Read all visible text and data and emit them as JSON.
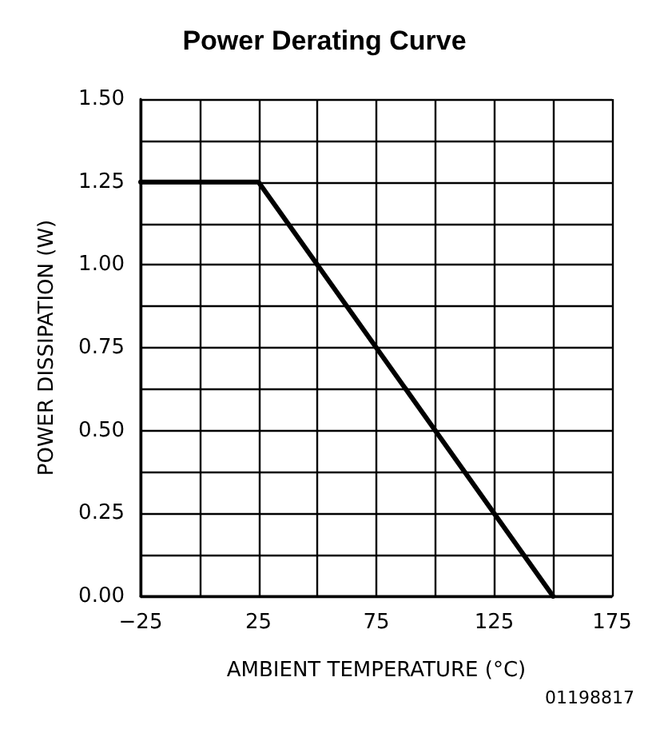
{
  "chart_data": {
    "type": "line",
    "title": "Power Derating Curve",
    "xlabel": "AMBIENT TEMPERATURE (°C)",
    "ylabel": "POWER DISSIPATION (W)",
    "annotations": [
      "01198817"
    ],
    "x": [
      -25,
      25,
      150
    ],
    "series": [
      {
        "color": "#000000",
        "values": [
          1.25,
          1.25,
          0
        ]
      }
    ],
    "xlim": [
      -25,
      175
    ],
    "xticks": [
      {
        "value": -25,
        "label": "−25"
      },
      {
        "value": 0,
        "label": null
      },
      25,
      {
        "value": 50,
        "label": null
      },
      75,
      {
        "value": 100,
        "label": null
      },
      125,
      {
        "value": 150,
        "label": null
      },
      175
    ],
    "ylim": [
      0,
      1.5
    ],
    "yticks": [
      {
        "value": 0,
        "label": "0.00"
      },
      {
        "value": 0.125,
        "label": null
      },
      {
        "value": 0.25,
        "label": "0.25"
      },
      {
        "value": 0.375,
        "label": null
      },
      {
        "value": 0.5,
        "label": "0.50"
      },
      {
        "value": 0.625,
        "label": null
      },
      {
        "value": 0.75,
        "label": "0.75"
      },
      {
        "value": 0.875,
        "label": null
      },
      {
        "value": 1,
        "label": "1.00"
      },
      {
        "value": 1.125,
        "label": null
      },
      {
        "value": 1.25,
        "label": "1.25"
      },
      {
        "value": 1.375,
        "label": null
      },
      {
        "value": 1.5,
        "label": "1.50"
      }
    ],
    "grid": true,
    "marker": "none",
    "line_style": "solid"
  }
}
